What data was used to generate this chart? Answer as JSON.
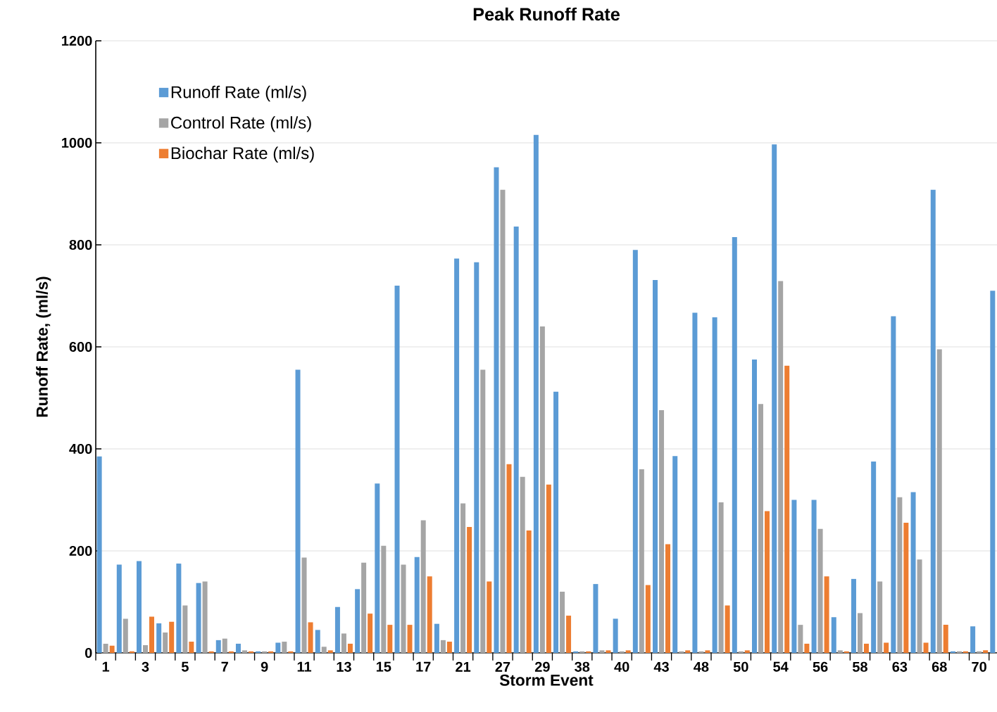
{
  "chart_data": {
    "type": "bar",
    "title": "Peak Runoff Rate",
    "xlabel": "Storm Event",
    "ylabel": "Runoff Rate, (ml/s)",
    "categories": [
      "1",
      null,
      "3",
      null,
      "5",
      null,
      "7",
      null,
      "9",
      null,
      "11",
      null,
      "13",
      null,
      "15",
      null,
      "17",
      null,
      "21",
      null,
      "27",
      null,
      "29",
      null,
      "38",
      null,
      "40",
      null,
      "43",
      null,
      "48",
      null,
      "50",
      null,
      "54",
      null,
      "56",
      null,
      "58",
      null,
      "63",
      null,
      "68",
      null,
      "70",
      null
    ],
    "series": [
      {
        "name": "Runoff Rate (ml/s)",
        "color": "#5b9bd5",
        "values": [
          385,
          173,
          180,
          58,
          175,
          137,
          25,
          18,
          3,
          20,
          555,
          45,
          90,
          125,
          332,
          720,
          188,
          57,
          773,
          766,
          952,
          836,
          1016,
          512,
          3,
          135,
          67,
          790,
          731,
          386,
          667,
          658,
          815,
          575,
          997,
          300,
          300,
          70,
          145,
          375,
          660,
          315,
          908,
          3,
          52,
          710
        ]
      },
      {
        "name": "Control Rate (ml/s)",
        "color": "#a5a5a5",
        "values": [
          18,
          67,
          15,
          40,
          93,
          140,
          28,
          5,
          3,
          22,
          187,
          12,
          38,
          177,
          210,
          173,
          260,
          25,
          293,
          555,
          908,
          345,
          640,
          120,
          3,
          5,
          3,
          360,
          476,
          3,
          3,
          295,
          3,
          488,
          729,
          55,
          243,
          5,
          78,
          140,
          305,
          183,
          595,
          3,
          3,
          null
        ]
      },
      {
        "name": "Biochar Rate (ml/s)",
        "color": "#ed7d31",
        "values": [
          14,
          3,
          71,
          61,
          22,
          3,
          3,
          3,
          3,
          3,
          60,
          5,
          18,
          77,
          55,
          55,
          150,
          22,
          247,
          140,
          370,
          240,
          330,
          73,
          3,
          5,
          5,
          133,
          213,
          5,
          5,
          93,
          5,
          278,
          563,
          18,
          150,
          3,
          18,
          20,
          255,
          20,
          55,
          3,
          5,
          null
        ]
      }
    ],
    "ylim": [
      0,
      1200
    ],
    "yticks": [
      0,
      200,
      400,
      600,
      800,
      1000,
      1200
    ],
    "grid": "y",
    "legend": "top left"
  }
}
